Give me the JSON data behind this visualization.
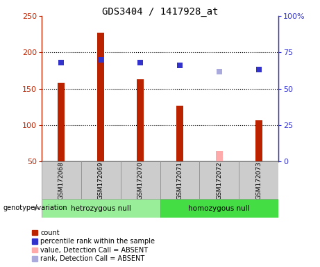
{
  "title": "GDS3404 / 1417928_at",
  "samples": [
    "GSM172068",
    "GSM172069",
    "GSM172070",
    "GSM172071",
    "GSM172072",
    "GSM172073"
  ],
  "count_values": [
    158,
    227,
    163,
    127,
    null,
    107
  ],
  "count_absent": [
    null,
    null,
    null,
    null,
    65,
    null
  ],
  "percentile_values": [
    68,
    70,
    68,
    66,
    null,
    63
  ],
  "percentile_absent": [
    null,
    null,
    null,
    null,
    62,
    null
  ],
  "bar_color": "#bb2200",
  "bar_absent_color": "#ffaaaa",
  "dot_color": "#3333cc",
  "dot_absent_color": "#aaaadd",
  "ylim_left": [
    50,
    250
  ],
  "ylim_right": [
    0,
    100
  ],
  "yticks_left": [
    50,
    100,
    150,
    200,
    250
  ],
  "yticks_right": [
    0,
    25,
    50,
    75,
    100
  ],
  "ytick_labels_right": [
    "0",
    "25",
    "50",
    "75",
    "100%"
  ],
  "group1_label": "hetrozygous null",
  "group2_label": "homozygous null",
  "group1_indices": [
    0,
    1,
    2
  ],
  "group2_indices": [
    3,
    4,
    5
  ],
  "group1_color": "#99ee99",
  "group2_color": "#44dd44",
  "legend_items": [
    {
      "label": "count",
      "color": "#bb2200"
    },
    {
      "label": "percentile rank within the sample",
      "color": "#3333cc"
    },
    {
      "label": "value, Detection Call = ABSENT",
      "color": "#ffaaaa"
    },
    {
      "label": "rank, Detection Call = ABSENT",
      "color": "#aaaadd"
    }
  ],
  "bar_width": 0.18,
  "dot_size": 30,
  "background_color": "#ffffff",
  "genotype_label": "genotype/variation",
  "grid_dotted_vals": [
    100,
    150,
    200
  ]
}
